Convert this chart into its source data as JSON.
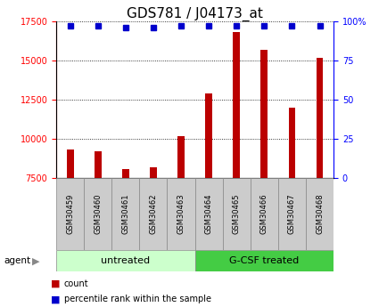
{
  "title": "GDS781 / J04173_at",
  "samples": [
    "GSM30459",
    "GSM30460",
    "GSM30461",
    "GSM30462",
    "GSM30463",
    "GSM30464",
    "GSM30465",
    "GSM30466",
    "GSM30467",
    "GSM30468"
  ],
  "counts": [
    9300,
    9200,
    8100,
    8200,
    10200,
    12900,
    16800,
    15700,
    12000,
    15200
  ],
  "percentile_ranks": [
    97,
    97,
    96,
    96,
    97,
    97,
    97,
    97,
    97,
    97
  ],
  "ylim_left": [
    7500,
    17500
  ],
  "ylim_right": [
    0,
    100
  ],
  "yticks_left": [
    7500,
    10000,
    12500,
    15000,
    17500
  ],
  "yticks_right": [
    0,
    25,
    50,
    75,
    100
  ],
  "ytick_right_labels": [
    "0",
    "25",
    "50",
    "75",
    "100%"
  ],
  "bar_color": "#bb0000",
  "dot_color": "#0000cc",
  "group1_label": "untreated",
  "group2_label": "G-CSF treated",
  "group1_indices": [
    0,
    1,
    2,
    3,
    4
  ],
  "group2_indices": [
    5,
    6,
    7,
    8,
    9
  ],
  "group1_bg": "#ccffcc",
  "group2_bg": "#44cc44",
  "sample_bg": "#cccccc",
  "legend_count_label": "count",
  "legend_pct_label": "percentile rank within the sample",
  "agent_label": "agent",
  "title_fontsize": 11,
  "tick_fontsize": 7,
  "label_fontsize": 7.5
}
